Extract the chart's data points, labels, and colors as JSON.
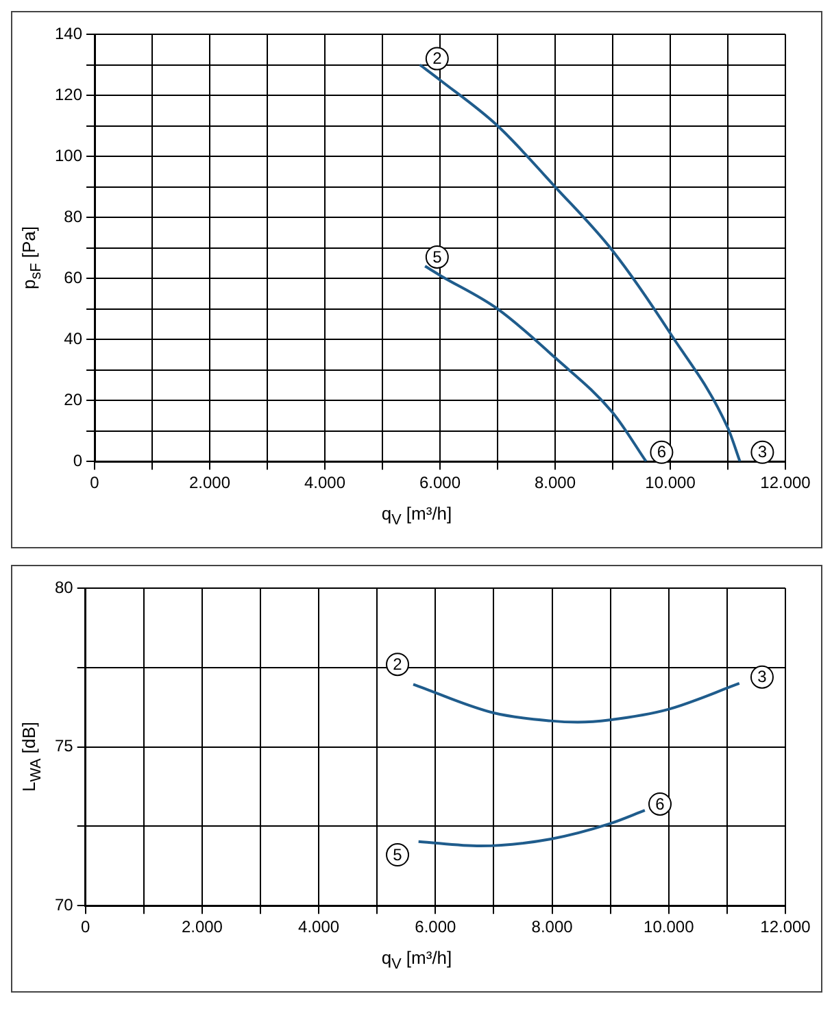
{
  "chart_data": [
    {
      "type": "line",
      "xlabel": "q$_{V}$ [m³/h]",
      "ylabel": "p$_{sF}$ [Pa]",
      "grid": true,
      "xlim": [
        0,
        12000
      ],
      "ylim": [
        0,
        140
      ],
      "xticks": [
        0,
        {
          "value": 1000,
          "label": null
        },
        {
          "value": 2000,
          "label": "2.000"
        },
        {
          "value": 3000,
          "label": null
        },
        {
          "value": 4000,
          "label": "4.000"
        },
        {
          "value": 5000,
          "label": null
        },
        {
          "value": 6000,
          "label": "6.000"
        },
        {
          "value": 7000,
          "label": null
        },
        {
          "value": 8000,
          "label": "8.000"
        },
        {
          "value": 9000,
          "label": null
        },
        {
          "value": 10000,
          "label": "10.000"
        },
        {
          "value": 11000,
          "label": null
        },
        {
          "value": 12000,
          "label": "12.000"
        }
      ],
      "yticks": [
        0,
        {
          "value": 10,
          "label": null
        },
        20,
        {
          "value": 30,
          "label": null
        },
        40,
        {
          "value": 50,
          "label": null
        },
        60,
        {
          "value": 70,
          "label": null
        },
        80,
        {
          "value": 90,
          "label": null
        },
        100,
        {
          "value": 110,
          "label": null
        },
        120,
        {
          "value": 130,
          "label": null
        },
        140
      ],
      "series": [
        {
          "color": "#1f5c8c",
          "x": [
            5650,
            6000,
            7000,
            8000,
            9000,
            10000,
            11000,
            11210
          ],
          "values": [
            130,
            125,
            110,
            90,
            69,
            42,
            11,
            0
          ]
        },
        {
          "color": "#1f5c8c",
          "x": [
            5740,
            6000,
            7000,
            8000,
            9000,
            9580
          ],
          "values": [
            64,
            61,
            50,
            34,
            16,
            0
          ]
        }
      ],
      "annotations": [
        {
          "text": "2",
          "x": 5950,
          "y": 132
        },
        {
          "text": "3",
          "x": 11600,
          "y": 3
        },
        {
          "text": "5",
          "x": 5950,
          "y": 67
        },
        {
          "text": "6",
          "x": 9850,
          "y": 3
        }
      ]
    },
    {
      "type": "line",
      "xlabel": "q$_{V}$ [m³/h]",
      "ylabel": "L$_{WA}$ [dB]",
      "grid": true,
      "xlim": [
        0,
        12000
      ],
      "ylim": [
        70,
        80
      ],
      "xticks": [
        0,
        {
          "value": 1000,
          "label": null
        },
        {
          "value": 2000,
          "label": "2.000"
        },
        {
          "value": 3000,
          "label": null
        },
        {
          "value": 4000,
          "label": "4.000"
        },
        {
          "value": 5000,
          "label": null
        },
        {
          "value": 6000,
          "label": "6.000"
        },
        {
          "value": 7000,
          "label": null
        },
        {
          "value": 8000,
          "label": "8.000"
        },
        {
          "value": 9000,
          "label": null
        },
        {
          "value": 10000,
          "label": "10.000"
        },
        {
          "value": 11000,
          "label": null
        },
        {
          "value": 12000,
          "label": "12.000"
        }
      ],
      "yticks": [
        70,
        {
          "value": 72.5,
          "label": null
        },
        75,
        {
          "value": 77.5,
          "label": null
        },
        80
      ],
      "series": [
        {
          "color": "#1f5c8c",
          "x": [
            5620,
            7000,
            7980,
            8440,
            8990,
            9990,
            11210
          ],
          "values": [
            76.97,
            76.07,
            75.82,
            75.78,
            75.85,
            76.18,
            77.0
          ]
        },
        {
          "color": "#1f5c8c",
          "x": [
            5710,
            6775,
            7980,
            8990,
            9590
          ],
          "values": [
            72.02,
            71.88,
            72.1,
            72.58,
            73.0
          ]
        }
      ],
      "annotations": [
        {
          "text": "2",
          "x": 5350,
          "y": 77.6
        },
        {
          "text": "3",
          "x": 11600,
          "y": 77.2
        },
        {
          "text": "5",
          "x": 5350,
          "y": 71.6
        },
        {
          "text": "6",
          "x": 9850,
          "y": 73.2
        }
      ]
    }
  ]
}
